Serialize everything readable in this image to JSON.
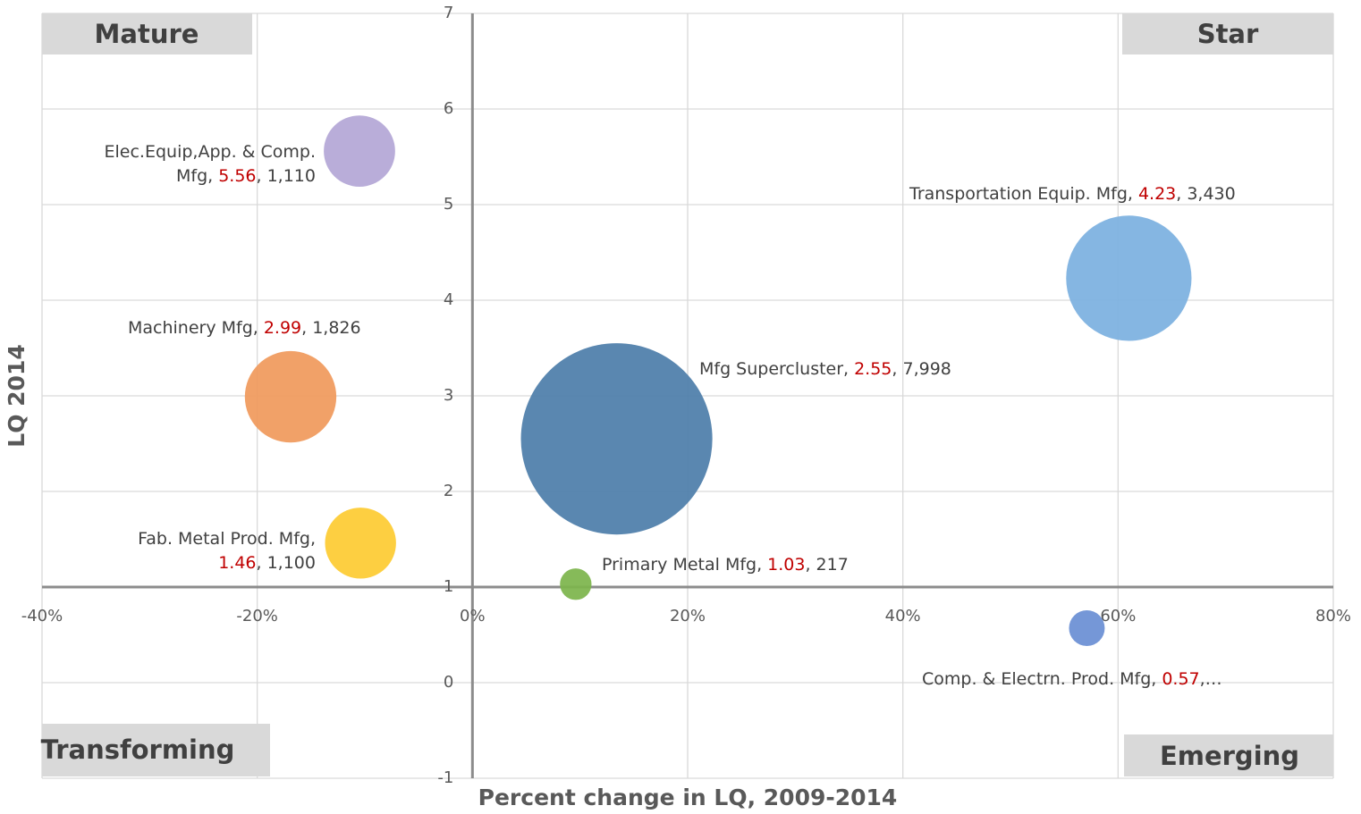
{
  "chart_data": {
    "type": "bubble",
    "x_label": "Percent change in LQ, 2009-2014",
    "y_label": "LQ 2014",
    "quadrants": {
      "top_left": "Mature",
      "top_right": "Star",
      "bottom_left": "Transforming",
      "bottom_right": "Emerging"
    },
    "labels": [
      [
        "Elec.Equip,App. & Comp.",
        "Mfg,"
      ],
      [
        "Transportation Equip. Mfg,"
      ],
      [
        "Machinery Mfg,"
      ],
      [
        "Mfg Supercluster,"
      ],
      [
        "Fab. Metal Prod. Mfg,"
      ],
      [
        "Primary Metal Mfg,"
      ],
      [
        "Comp. & Electrn. Prod. Mfg,"
      ]
    ],
    "x": [
      -10.5,
      61,
      -16.9,
      13.4,
      -10.4,
      9.6,
      57.1
    ],
    "values": [
      5.56,
      4.23,
      2.99,
      2.55,
      1.46,
      1.03,
      0.57
    ],
    "sizes": [
      1110,
      3430,
      1826,
      7998,
      1100,
      217,
      279
    ],
    "size_labels": [
      ", 1,110",
      ", 3,430",
      ", 1,826",
      ", 7,998",
      ", 1,100",
      ", 217",
      ",…"
    ],
    "colors": [
      "#b4a7d6",
      "#7cb0e0",
      "#f09a5c",
      "#4d7eaa",
      "#fdcb33",
      "#7db54c",
      "#6b8fd4"
    ],
    "value_color": "#c00000",
    "xlim": [
      -40,
      80
    ],
    "xticks": [
      {
        "value": -40,
        "label": "-40%"
      },
      {
        "value": -20,
        "label": "-20%"
      },
      {
        "value": 0,
        "label": "0%"
      },
      {
        "value": 20,
        "label": "20%"
      },
      {
        "value": 40,
        "label": "40%"
      },
      {
        "value": 60,
        "label": "60%"
      },
      {
        "value": 80,
        "label": "80%"
      }
    ],
    "ylim": [
      -1,
      7
    ],
    "yticks": [
      -1,
      0,
      1,
      2,
      3,
      4,
      5,
      6,
      7
    ],
    "x_axis_at_y": 1,
    "grid": true
  }
}
